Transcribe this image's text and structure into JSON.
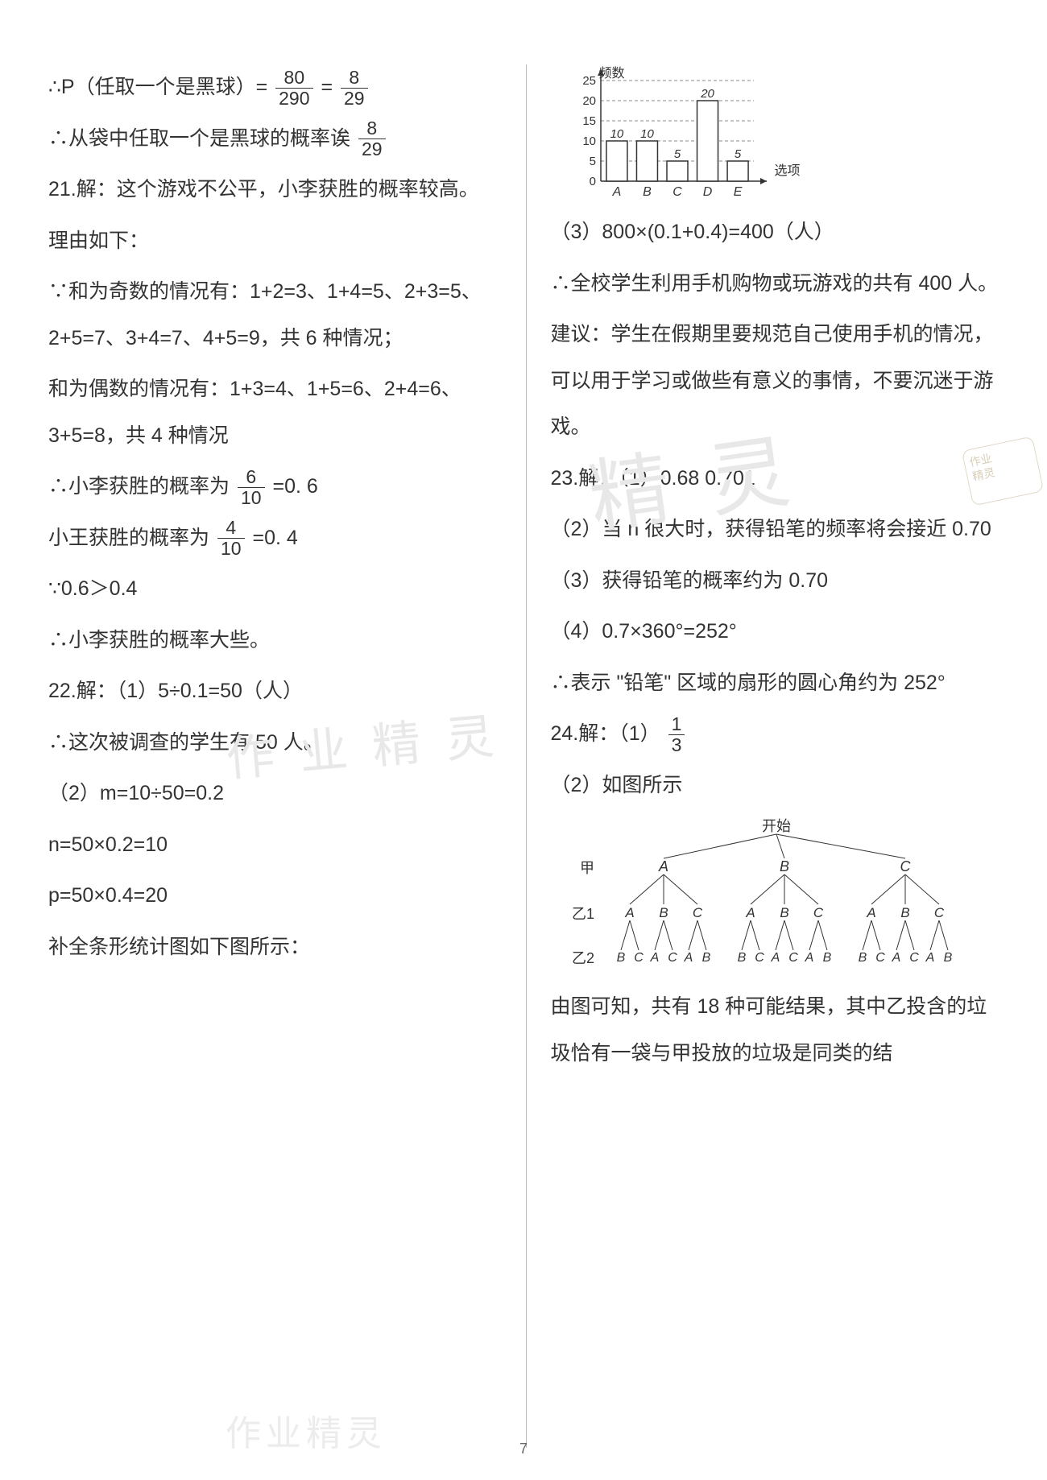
{
  "left": {
    "p_black_prefix": "∴P（任取一个是黑球）= ",
    "p_black_f1_num": "80",
    "p_black_f1_den": "290",
    "eq": " = ",
    "p_black_f2_num": "8",
    "p_black_f2_den": "29",
    "p_black_conc_prefix": "∴从袋中任取一个是黑球的概率诶",
    "p_black_conc_num": "8",
    "p_black_conc_den": "29",
    "q21_a": "21.解：这个游戏不公平，小李获胜的概率较高。",
    "q21_b": "理由如下：",
    "q21_c": "∵和为奇数的情况有：1+2=3、1+4=5、2+3=5、2+5=7、3+4=7、4+5=9，共 6 种情况；",
    "q21_d": "和为偶数的情况有：1+3=4、1+5=6、2+4=6、3+5=8，共 4 种情况",
    "q21_li_prefix": "∴小李获胜的概率为",
    "q21_li_num": "6",
    "q21_li_den": "10",
    "q21_li_suffix": " =0. 6",
    "q21_wang_prefix": "小王获胜的概率为",
    "q21_wang_num": "4",
    "q21_wang_den": "10",
    "q21_wang_suffix": " =0. 4",
    "q21_e": "∵0.6＞0.4",
    "q21_f": "∴小李获胜的概率大些。",
    "q22_a": "22.解：（1）5÷0.1=50（人）",
    "q22_b": "∴这次被调查的学生有 50 人。",
    "q22_c": "（2）m=10÷50=0.2",
    "q22_d": "n=50×0.2=10",
    "q22_e": "p=50×0.4=20",
    "q22_f": "补全条形统计图如下图所示："
  },
  "right": {
    "chart": {
      "ylabel": "频数",
      "xlabel": "选项",
      "yticks": [
        "0",
        "5",
        "10",
        "15",
        "20",
        "25"
      ],
      "ymax": 25,
      "categories": [
        "A",
        "B",
        "C",
        "D",
        "E"
      ],
      "values": [
        10,
        10,
        5,
        20,
        5
      ],
      "bar_labels": [
        "10",
        "10",
        "5",
        "20",
        "5"
      ],
      "axis_color": "#333333",
      "bar_fill": "#ffffff",
      "bar_stroke": "#333333",
      "grid_color": "#888888"
    },
    "q22_3a": "（3）800×(0.1+0.4)=400（人）",
    "q22_3b": "∴全校学生利用手机购物或玩游戏的共有 400 人。",
    "q22_3c": "建议：学生在假期里要规范自己使用手机的情况，可以用于学习或做些有意义的事情，不要沉迷于游戏。",
    "q23_a": "23.解：（1）0.68   0.701",
    "q23_b": "（2）当 n 很大时，获得铅笔的频率将会接近 0.70",
    "q23_c": "（3）获得铅笔的概率约为 0.70",
    "q23_d": "（4）0.7×360°=252°",
    "q23_e": "∴表示 \"铅笔\" 区域的扇形的圆心角约为 252°",
    "q24_a_prefix": "24.解：（1）",
    "q24_a_num": "1",
    "q24_a_den": "3",
    "q24_b": "（2）如图所示",
    "tree": {
      "root": "开始",
      "row_labels": [
        "甲",
        "乙1",
        "乙2"
      ],
      "level1": [
        "A",
        "B",
        "C"
      ],
      "level2": [
        "A",
        "B",
        "C",
        "A",
        "B",
        "C",
        "A",
        "B",
        "C"
      ],
      "level3": [
        "B",
        "C",
        "A",
        "C",
        "A",
        "B",
        "B",
        "C",
        "A",
        "C",
        "A",
        "B",
        "B",
        "C",
        "A",
        "C",
        "A",
        "B"
      ],
      "stroke": "#333333",
      "font_size": 18
    },
    "q24_c": "由图可知，共有 18 种可能结果，其中乙投含的垃圾恰有一袋与甲投放的垃圾是同类的结"
  },
  "pagenum": "7",
  "watermarks": {
    "a": "作 业 精 灵",
    "b": "精 灵",
    "c": "作业精灵"
  },
  "stamp_lines": [
    "作业",
    "精灵"
  ]
}
